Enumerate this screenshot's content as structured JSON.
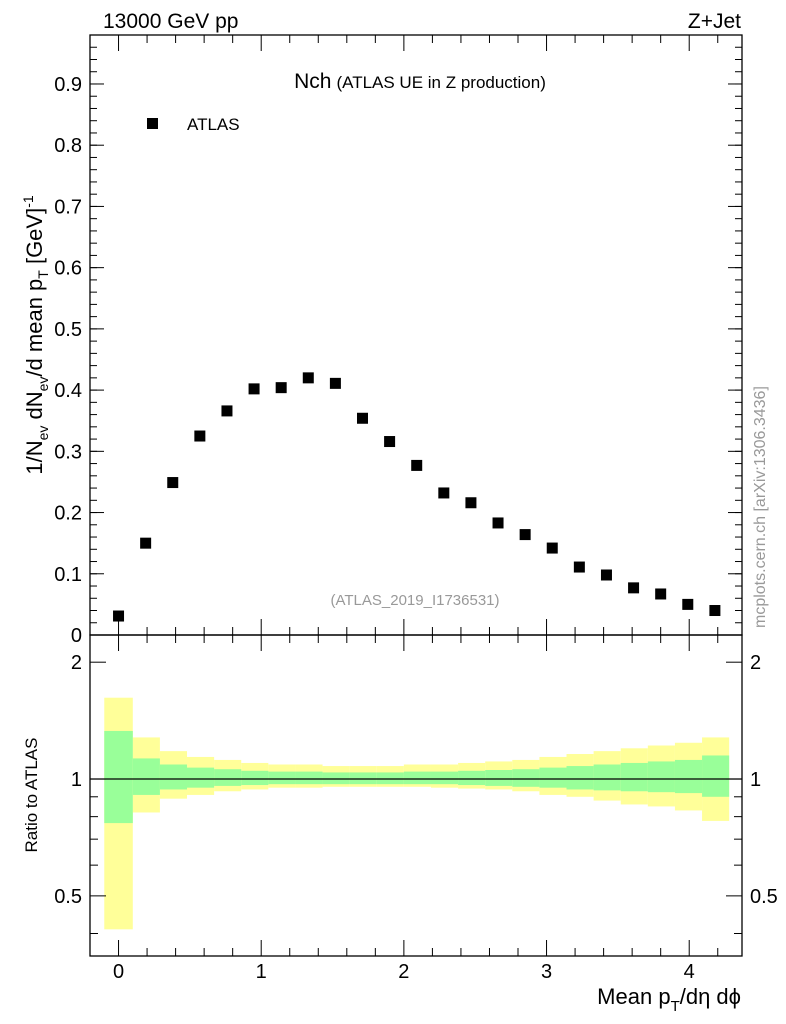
{
  "header": {
    "left": "13000 GeV pp",
    "right": "Z+Jet"
  },
  "side_note": "mcplots.cern.ch [arXiv:1306.3436]",
  "chart_data": [
    {
      "type": "scatter",
      "title": "Nch",
      "subtitle": "(ATLAS UE in Z production)",
      "watermark": "(ATLAS_2019_I1736531)",
      "ylabel": {
        "main": "1/N",
        "sub1": "ev",
        "mid": " dN",
        "sub2": "ev",
        "mid2": "/d mean p",
        "sub3": "T",
        "unit": " [GeV]",
        "sup": "-1"
      },
      "xlim": [
        -0.2,
        4.37
      ],
      "ylim": [
        0,
        0.98
      ],
      "yticks": [
        0,
        0.1,
        0.2,
        0.3,
        0.4,
        0.5,
        0.6,
        0.7,
        0.8,
        0.9
      ],
      "ytick_labels": [
        "0",
        "0.1",
        "0.2",
        "0.3",
        "0.4",
        "0.5",
        "0.6",
        "0.7",
        "0.8",
        "0.9"
      ],
      "legend": {
        "position": "top-left",
        "entries": [
          "ATLAS"
        ]
      },
      "series": [
        {
          "name": "ATLAS",
          "marker": "square",
          "color": "#000000",
          "x": [
            0.0,
            0.19,
            0.38,
            0.57,
            0.76,
            0.95,
            1.14,
            1.33,
            1.52,
            1.71,
            1.9,
            2.09,
            2.28,
            2.47,
            2.66,
            2.85,
            3.04,
            3.23,
            3.42,
            3.61,
            3.8,
            3.99,
            4.18
          ],
          "y": [
            0.031,
            0.15,
            0.249,
            0.325,
            0.366,
            0.402,
            0.404,
            0.42,
            0.411,
            0.354,
            0.316,
            0.277,
            0.232,
            0.216,
            0.183,
            0.164,
            0.142,
            0.111,
            0.098,
            0.077,
            0.067,
            0.05,
            0.04
          ]
        }
      ]
    },
    {
      "type": "area",
      "ylabel": "Ratio to ATLAS",
      "xlabel": {
        "pre": "Mean p",
        "sub": "T",
        "post": "/dη dϕ"
      },
      "xlim": [
        -0.2,
        4.37
      ],
      "ylim": [
        0.35,
        2.35
      ],
      "xticks": [
        0,
        1,
        2,
        3,
        4
      ],
      "xtick_labels": [
        "0",
        "1",
        "2",
        "3",
        "4"
      ],
      "yticks": [
        0.5,
        1,
        2
      ],
      "ytick_labels": [
        "0.5",
        "1",
        "2"
      ],
      "log_scale_y": true,
      "reference_line": 1,
      "bin_edges": [
        -0.1,
        0.1,
        0.29,
        0.48,
        0.67,
        0.86,
        1.05,
        1.24,
        1.43,
        1.62,
        1.81,
        2.0,
        2.19,
        2.38,
        2.57,
        2.76,
        2.95,
        3.14,
        3.33,
        3.52,
        3.71,
        3.9,
        4.09,
        4.28
      ],
      "bands": [
        {
          "name": "outer",
          "color": "#ffff99",
          "low": [
            0.41,
            0.82,
            0.89,
            0.91,
            0.93,
            0.94,
            0.95,
            0.95,
            0.955,
            0.955,
            0.955,
            0.955,
            0.95,
            0.945,
            0.94,
            0.93,
            0.91,
            0.9,
            0.88,
            0.86,
            0.85,
            0.83,
            0.78
          ],
          "high": [
            1.62,
            1.28,
            1.18,
            1.14,
            1.12,
            1.1,
            1.09,
            1.09,
            1.08,
            1.08,
            1.08,
            1.09,
            1.09,
            1.1,
            1.11,
            1.12,
            1.14,
            1.16,
            1.18,
            1.2,
            1.22,
            1.24,
            1.28
          ]
        },
        {
          "name": "inner",
          "color": "#99ff99",
          "low": [
            0.77,
            0.91,
            0.94,
            0.95,
            0.96,
            0.965,
            0.97,
            0.97,
            0.97,
            0.97,
            0.97,
            0.97,
            0.97,
            0.965,
            0.96,
            0.955,
            0.95,
            0.94,
            0.935,
            0.93,
            0.925,
            0.92,
            0.9
          ]
        }
      ],
      "inner_high": [
        1.33,
        1.13,
        1.09,
        1.07,
        1.06,
        1.05,
        1.045,
        1.045,
        1.04,
        1.04,
        1.04,
        1.045,
        1.045,
        1.05,
        1.055,
        1.06,
        1.07,
        1.08,
        1.09,
        1.1,
        1.11,
        1.12,
        1.15
      ]
    }
  ]
}
